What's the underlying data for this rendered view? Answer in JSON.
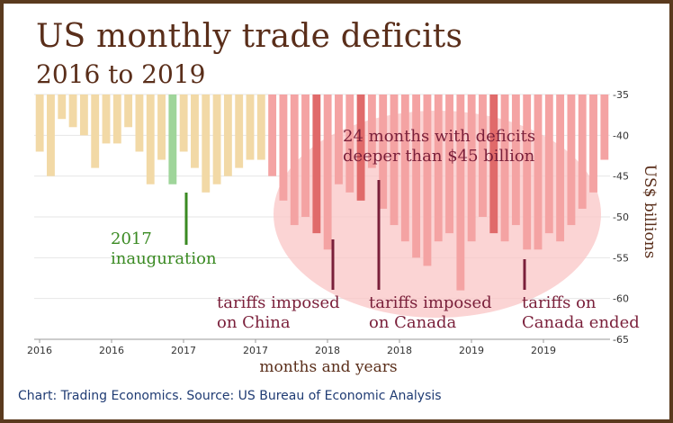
{
  "header": {
    "title": "US monthly trade deficits",
    "subtitle": "2016 to 2019"
  },
  "footer": {
    "source": "Chart: Trading Economics. Source: US Bureau of Economic Analysis"
  },
  "colors": {
    "bar_default": "#f2d9a6",
    "bar_deficit": "#f4a3a3",
    "bar_event": "#e06a6a",
    "bar_inauguration": "#9fd59a",
    "ellipse": "#f9c6c6",
    "title": "#5a2e1a",
    "annotation_dark": "#7a1f3a",
    "annotation_green": "#3a8a22"
  },
  "chart_data": {
    "type": "bar",
    "xlabel": "months and years",
    "ylabel": "US$ billions",
    "ylim": [
      -65,
      -35
    ],
    "yticks": [
      -35,
      -40,
      -45,
      -50,
      -55,
      -60,
      -65
    ],
    "x_tick_labels": [
      "2016",
      "2016",
      "2017",
      "2017",
      "2018",
      "2018",
      "2019",
      "2019"
    ],
    "values": [
      -42,
      -45,
      -38,
      -39,
      -40,
      -44,
      -41,
      -41,
      -39,
      -42,
      -46,
      -43,
      -46,
      -42,
      -44,
      -47,
      -46,
      -45,
      -44,
      -43,
      -43,
      -45,
      -48,
      -51,
      -50,
      -52,
      -54,
      -46,
      -47,
      -48,
      -44,
      -49,
      -51,
      -53,
      -55,
      -56,
      -53,
      -52,
      -59,
      -53,
      -50,
      -52,
      -53,
      -51,
      -54,
      -54,
      -52,
      -53,
      -51,
      -49,
      -47,
      -43
    ],
    "highlights": {
      "inauguration_index": 12,
      "event_indices": [
        25,
        29,
        41
      ]
    },
    "annotations": [
      {
        "text_lines": [
          "2017",
          "inauguration"
        ],
        "color": "green"
      },
      {
        "text_lines": [
          "tariffs imposed",
          "on China"
        ],
        "color": "dark"
      },
      {
        "text_lines": [
          "tariffs imposed",
          "on Canada"
        ],
        "color": "dark"
      },
      {
        "text_lines": [
          "tariffs on",
          "Canada ended"
        ],
        "color": "dark"
      },
      {
        "text_lines": [
          "24 months with deficits",
          "deeper than $45 billion"
        ],
        "color": "dark"
      }
    ]
  }
}
